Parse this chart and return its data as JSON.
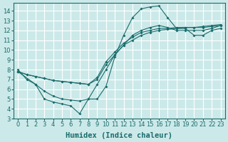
{
  "xlabel": "Humidex (Indice chaleur)",
  "xlim": [
    -0.5,
    23.5
  ],
  "ylim": [
    3,
    14.8
  ],
  "yticks": [
    3,
    4,
    5,
    6,
    7,
    8,
    9,
    10,
    11,
    12,
    13,
    14
  ],
  "xticks": [
    0,
    1,
    2,
    3,
    4,
    5,
    6,
    7,
    8,
    9,
    10,
    11,
    12,
    13,
    14,
    15,
    16,
    17,
    18,
    19,
    20,
    21,
    22,
    23
  ],
  "bg_color": "#cce9e9",
  "grid_color": "#ffffff",
  "line_color": "#1a6b6b",
  "line1_x": [
    0,
    1,
    2,
    3,
    4,
    5,
    6,
    7,
    8,
    9,
    10,
    11,
    12,
    13,
    14,
    15,
    16,
    17,
    18,
    19,
    20,
    21,
    22,
    23
  ],
  "line1_y": [
    8.0,
    7.0,
    6.5,
    5.0,
    4.7,
    4.5,
    4.3,
    3.5,
    5.0,
    5.0,
    6.3,
    9.3,
    11.5,
    13.3,
    14.2,
    14.4,
    14.5,
    13.3,
    12.2,
    12.2,
    11.5,
    11.5,
    12.0,
    12.2
  ],
  "line2_x": [
    0,
    1,
    2,
    3,
    4,
    5,
    6,
    7,
    8,
    9,
    10,
    11,
    12,
    13,
    14,
    15,
    16,
    17,
    18,
    19,
    20,
    21,
    22,
    23
  ],
  "line2_y": [
    7.8,
    7.5,
    7.3,
    7.1,
    6.9,
    6.8,
    6.7,
    6.6,
    6.5,
    7.0,
    8.5,
    9.5,
    10.5,
    11.0,
    11.5,
    11.8,
    12.0,
    12.1,
    12.2,
    12.3,
    12.3,
    12.3,
    12.4,
    12.5
  ],
  "line3_x": [
    0,
    1,
    2,
    3,
    4,
    5,
    6,
    7,
    8,
    9,
    10,
    11,
    12,
    13,
    14,
    15,
    16,
    17,
    18,
    19,
    20,
    21,
    22,
    23
  ],
  "line3_y": [
    7.8,
    7.5,
    7.3,
    7.1,
    6.9,
    6.8,
    6.7,
    6.6,
    6.5,
    7.2,
    8.8,
    9.8,
    10.7,
    11.3,
    11.8,
    12.0,
    12.2,
    12.2,
    12.3,
    12.3,
    12.3,
    12.4,
    12.5,
    12.6
  ],
  "line4_x": [
    0,
    2,
    3,
    4,
    5,
    6,
    7,
    8,
    9,
    10,
    11,
    12,
    13,
    14,
    15,
    16,
    17,
    18,
    19,
    20,
    21,
    22,
    23
  ],
  "line4_y": [
    7.8,
    6.5,
    5.8,
    5.3,
    5.0,
    4.9,
    4.8,
    5.0,
    6.5,
    8.0,
    9.5,
    10.5,
    11.5,
    12.0,
    12.3,
    12.5,
    12.3,
    12.0,
    12.0,
    12.0,
    12.0,
    12.2,
    12.5
  ],
  "font_size_label": 7.5,
  "tick_fontsize": 6.0
}
